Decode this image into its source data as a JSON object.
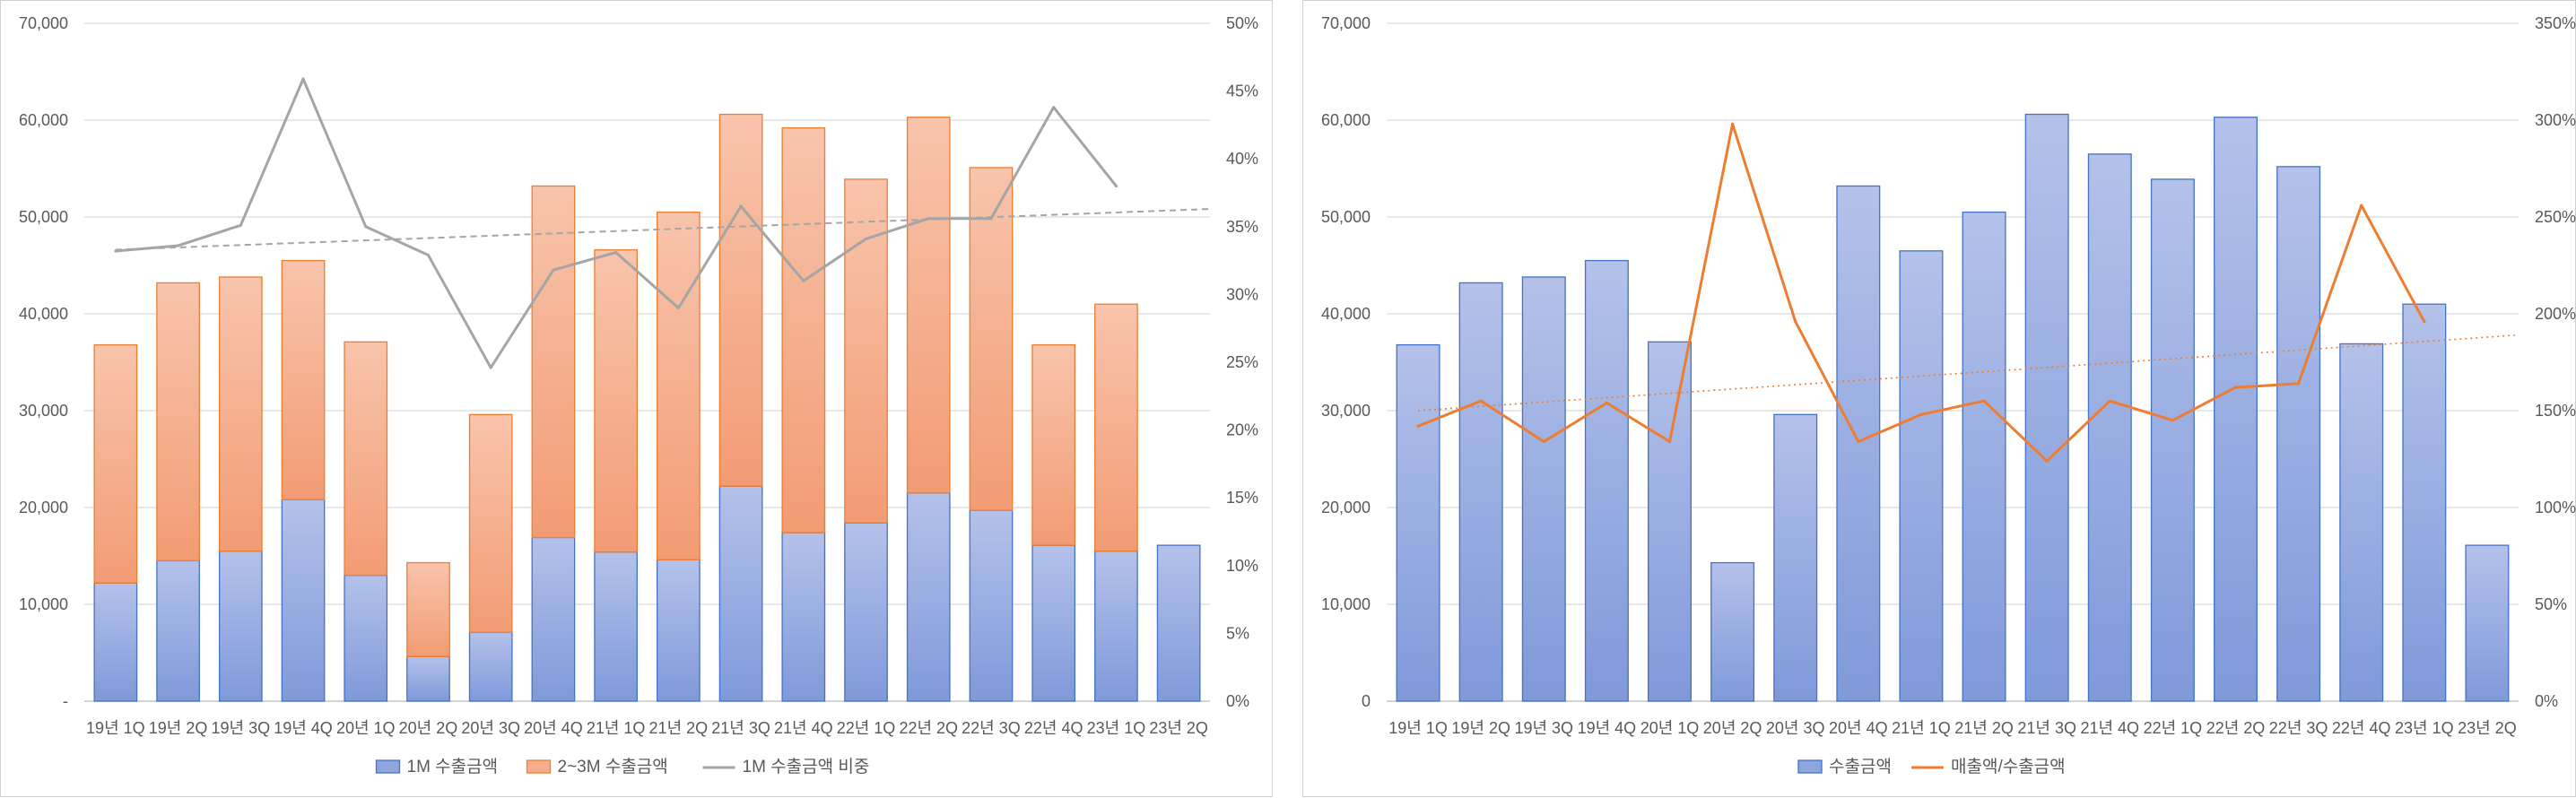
{
  "chart_data": [
    {
      "type": "bar",
      "stacked": true,
      "categories": [
        "19년 1Q",
        "19년 2Q",
        "19년 3Q",
        "19년 4Q",
        "20년 1Q",
        "20년 2Q",
        "20년 3Q",
        "20년 4Q",
        "21년 1Q",
        "21년 2Q",
        "21년 3Q",
        "21년 4Q",
        "22년 1Q",
        "22년 2Q",
        "22년 3Q",
        "22년 4Q",
        "23년 1Q",
        "23년 2Q"
      ],
      "series": [
        {
          "name": "1M 수출금액",
          "kind": "bar",
          "axis": "left",
          "color": "#8FA5DE",
          "values": [
            12200,
            14500,
            15500,
            20800,
            13000,
            4600,
            7100,
            16900,
            15400,
            14600,
            22200,
            17400,
            18400,
            21500,
            19700,
            16100,
            15500,
            16100
          ]
        },
        {
          "name": "2~3M 수출금액",
          "kind": "bar",
          "axis": "left",
          "color": "#F5AE8C",
          "values": [
            24600,
            28700,
            28300,
            24700,
            24100,
            9700,
            22500,
            36300,
            31200,
            35900,
            38400,
            41800,
            35500,
            38800,
            35400,
            20700,
            25500,
            null
          ]
        },
        {
          "name": "1M 수출금액 비중",
          "kind": "line",
          "axis": "right",
          "color": "#A5A5A5",
          "values": [
            33.2,
            33.6,
            35.1,
            45.9,
            35.0,
            32.9,
            24.6,
            31.8,
            33.1,
            29.0,
            36.5,
            31.0,
            34.1,
            35.6,
            35.6,
            43.8,
            38.0,
            null
          ]
        }
      ],
      "trendline": {
        "series": "1M 수출금액 비중",
        "style": "dashed",
        "from": 33.3,
        "to": 36.3
      },
      "yleft": {
        "min": 0,
        "max": 70000,
        "step": 10000,
        "ticks": [
          "-",
          "10,000",
          "20,000",
          "30,000",
          "40,000",
          "50,000",
          "60,000",
          "70,000"
        ]
      },
      "yright": {
        "min": 0,
        "max": 50,
        "step": 5,
        "ticks": [
          "0%",
          "5%",
          "10%",
          "15%",
          "20%",
          "25%",
          "30%",
          "35%",
          "40%",
          "45%",
          "50%"
        ]
      },
      "grid": true,
      "legend_position": "bottom"
    },
    {
      "type": "bar",
      "categories": [
        "19년 1Q",
        "19년 2Q",
        "19년 3Q",
        "19년 4Q",
        "20년 1Q",
        "20년 2Q",
        "20년 3Q",
        "20년 4Q",
        "21년 1Q",
        "21년 2Q",
        "21년 3Q",
        "21년 4Q",
        "22년 1Q",
        "22년 2Q",
        "22년 3Q",
        "22년 4Q",
        "23년 1Q",
        "23년 2Q"
      ],
      "series": [
        {
          "name": "수출금액",
          "kind": "bar",
          "axis": "left",
          "color": "#8FA5DE",
          "values": [
            36800,
            43200,
            43800,
            45500,
            37100,
            14300,
            29600,
            53200,
            46500,
            50500,
            60600,
            56500,
            53900,
            60300,
            55200,
            36900,
            41000,
            16100
          ]
        },
        {
          "name": "매출액/수출금액",
          "kind": "line",
          "axis": "right",
          "color": "#ED7D31",
          "values": [
            142,
            155,
            134,
            154,
            134,
            298,
            196,
            134,
            148,
            155,
            124,
            155,
            145,
            162,
            164,
            256,
            196,
            null
          ]
        }
      ],
      "trendline": {
        "series": "매출액/수출금액",
        "style": "dotted",
        "from": 150,
        "to": 189
      },
      "yleft": {
        "min": 0,
        "max": 70000,
        "step": 10000,
        "ticks": [
          "0",
          "10,000",
          "20,000",
          "30,000",
          "40,000",
          "50,000",
          "60,000",
          "70,000"
        ]
      },
      "yright": {
        "min": 0,
        "max": 350,
        "step": 50,
        "ticks": [
          "0%",
          "50%",
          "100%",
          "150%",
          "200%",
          "250%",
          "300%",
          "350%"
        ]
      },
      "grid": true,
      "legend_position": "bottom"
    }
  ]
}
